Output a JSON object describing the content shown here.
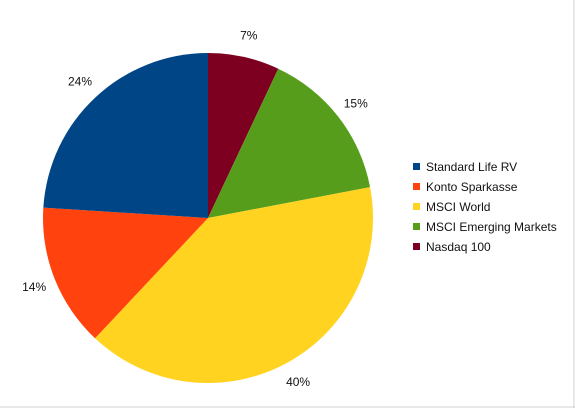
{
  "chart_data": {
    "type": "pie",
    "series": [
      {
        "name": "Standard Life RV",
        "value": 24,
        "label": "24%",
        "color": "#004586"
      },
      {
        "name": "Konto Sparkasse",
        "value": 14,
        "label": "14%",
        "color": "#ff420e"
      },
      {
        "name": "MSCI World",
        "value": 40,
        "label": "40%",
        "color": "#ffd320"
      },
      {
        "name": "MSCI Emerging Markets",
        "value": 15,
        "label": "15%",
        "color": "#579d1c"
      },
      {
        "name": "Nasdaq 100",
        "value": 7,
        "label": "7%",
        "color": "#7e0021"
      }
    ],
    "legend_position": "right",
    "start_at": "top",
    "direction": "clockwise",
    "slice_order": [
      "Nasdaq 100",
      "MSCI Emerging Markets",
      "MSCI World",
      "Konto Sparkasse",
      "Standard Life RV"
    ]
  }
}
